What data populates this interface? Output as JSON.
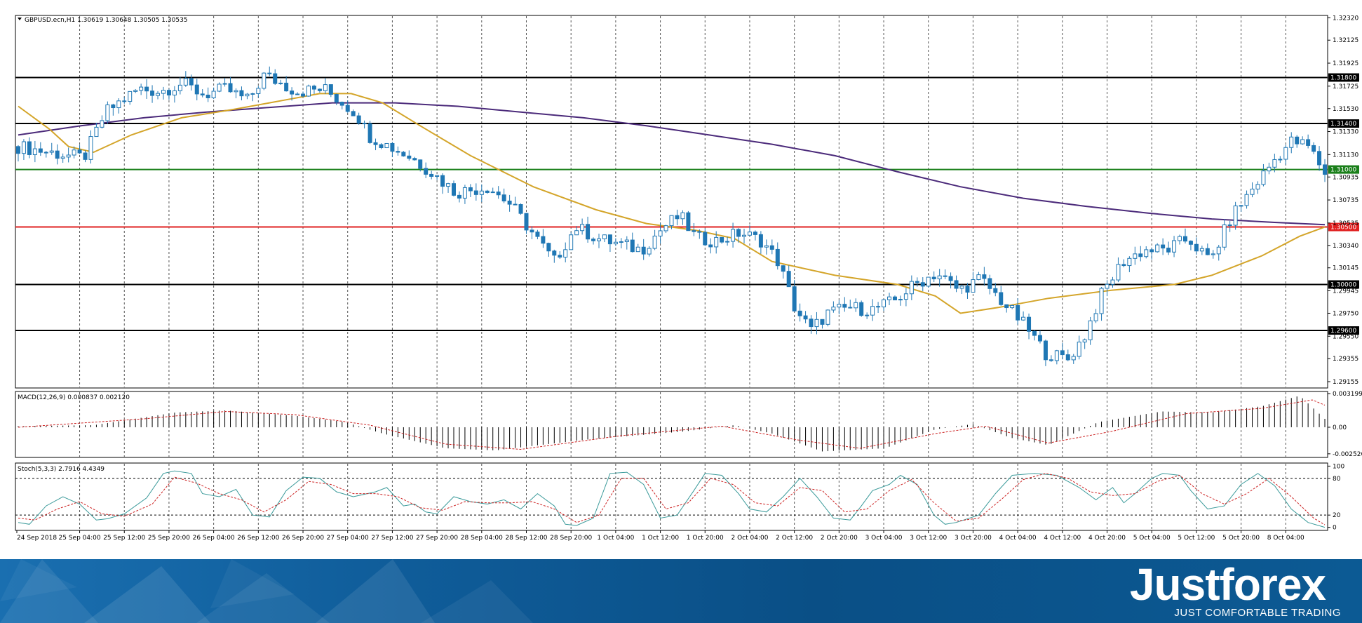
{
  "colors": {
    "bull": "#ffffff",
    "bear": "#1f77b4",
    "candle_edge": "#1f77b4",
    "ma_fast": "#d4a52a",
    "ma_slow": "#4b2a7a",
    "level_black": "#000000",
    "level_green": "#1a7f1a",
    "level_red": "#e02020",
    "macd_hist": "#000000",
    "macd_signal": "#cc2222",
    "stoch_main": "#3a9a9a",
    "stoch_signal": "#cc2222",
    "banner": "#0f5c99"
  },
  "brand": {
    "name": "Justforex",
    "tagline": "JUST COMFORTABLE TRADING"
  },
  "chart_data": [
    {
      "type": "candlestick",
      "title": "GBPUSD.ecn,H1  1.30619 1.30648 1.30505 1.30535",
      "ylim": [
        1.291,
        1.3234
      ],
      "y_ticks": [
        "1.32320",
        "1.32125",
        "1.31925",
        "1.31725",
        "1.31530",
        "1.31330",
        "1.31130",
        "1.30935",
        "1.30735",
        "1.30535",
        "1.30340",
        "1.30145",
        "1.29945",
        "1.29750",
        "1.29550",
        "1.29355",
        "1.29155"
      ],
      "x_tick_labels": [
        "24 Sep 2018",
        "25 Sep 04:00",
        "25 Sep 12:00",
        "25 Sep 20:00",
        "26 Sep 04:00",
        "26 Sep 12:00",
        "26 Sep 20:00",
        "27 Sep 04:00",
        "27 Sep 12:00",
        "27 Sep 20:00",
        "28 Sep 04:00",
        "28 Sep 12:00",
        "28 Sep 20:00",
        "1 Oct 04:00",
        "1 Oct 12:00",
        "1 Oct 20:00",
        "2 Oct 04:00",
        "2 Oct 12:00",
        "2 Oct 20:00",
        "3 Oct 04:00",
        "3 Oct 12:00",
        "3 Oct 20:00",
        "4 Oct 04:00",
        "4 Oct 12:00",
        "4 Oct 20:00",
        "5 Oct 04:00",
        "5 Oct 12:00",
        "5 Oct 20:00",
        "8 Oct 04:00"
      ],
      "horizontal_levels": [
        {
          "value": 1.318,
          "label": "1.31800",
          "color": "black"
        },
        {
          "value": 1.314,
          "label": "1.31400",
          "color": "black"
        },
        {
          "value": 1.31,
          "label": "1.31000",
          "color": "green"
        },
        {
          "value": 1.305,
          "label": "1.30500",
          "color": "red"
        },
        {
          "value": 1.3,
          "label": "1.30000",
          "color": "black"
        },
        {
          "value": 1.296,
          "label": "1.29600",
          "color": "black"
        }
      ],
      "ma_fast": [
        [
          0,
          1.3155
        ],
        [
          5,
          1.3135
        ],
        [
          8,
          1.312
        ],
        [
          12,
          1.3115
        ],
        [
          18,
          1.313
        ],
        [
          26,
          1.3145
        ],
        [
          34,
          1.3152
        ],
        [
          42,
          1.316
        ],
        [
          48,
          1.3166
        ],
        [
          53,
          1.3166
        ],
        [
          58,
          1.3158
        ],
        [
          64,
          1.3138
        ],
        [
          72,
          1.3112
        ],
        [
          82,
          1.3085
        ],
        [
          92,
          1.3065
        ],
        [
          100,
          1.3053
        ],
        [
          108,
          1.3047
        ],
        [
          114,
          1.304
        ],
        [
          120,
          1.302
        ],
        [
          130,
          1.3008
        ],
        [
          140,
          1.3
        ],
        [
          146,
          1.299
        ],
        [
          150,
          1.2975
        ],
        [
          156,
          1.298
        ],
        [
          164,
          1.2988
        ],
        [
          174,
          1.2995
        ],
        [
          184,
          1.3
        ],
        [
          190,
          1.3008
        ],
        [
          198,
          1.3025
        ],
        [
          204,
          1.3042
        ],
        [
          208,
          1.305
        ]
      ],
      "ma_slow": [
        [
          0,
          1.313
        ],
        [
          10,
          1.3138
        ],
        [
          20,
          1.3145
        ],
        [
          30,
          1.315
        ],
        [
          40,
          1.3154
        ],
        [
          50,
          1.3158
        ],
        [
          60,
          1.3158
        ],
        [
          70,
          1.3155
        ],
        [
          80,
          1.315
        ],
        [
          90,
          1.3145
        ],
        [
          100,
          1.3138
        ],
        [
          110,
          1.313
        ],
        [
          120,
          1.3122
        ],
        [
          130,
          1.3112
        ],
        [
          140,
          1.3098
        ],
        [
          150,
          1.3085
        ],
        [
          160,
          1.3075
        ],
        [
          170,
          1.3068
        ],
        [
          180,
          1.3062
        ],
        [
          190,
          1.3057
        ],
        [
          200,
          1.3054
        ],
        [
          208,
          1.3052
        ]
      ]
    },
    {
      "type": "histogram",
      "title": "MACD(12,26,9) 0.000837 0.002120",
      "ylim": [
        -0.00287,
        0.0034
      ],
      "y_ticks": [
        "0.003199",
        "0.00",
        "-0.002526"
      ],
      "hist": [
        [
          0,
          0.0001
        ],
        [
          12,
          0.0002
        ],
        [
          25,
          0.0014
        ],
        [
          33,
          0.0016
        ],
        [
          44,
          0.0011
        ],
        [
          52,
          0.0005
        ],
        [
          58,
          -0.0006
        ],
        [
          68,
          -0.002
        ],
        [
          76,
          -0.0022
        ],
        [
          90,
          -0.0012
        ],
        [
          106,
          -0.0004
        ],
        [
          114,
          0.0002
        ],
        [
          120,
          -0.0006
        ],
        [
          128,
          -0.0023
        ],
        [
          138,
          -0.002
        ],
        [
          146,
          -0.0002
        ],
        [
          152,
          0.0003
        ],
        [
          158,
          -0.001
        ],
        [
          164,
          -0.0017
        ],
        [
          172,
          0.0005
        ],
        [
          182,
          0.0015
        ],
        [
          190,
          0.0014
        ],
        [
          198,
          0.002
        ],
        [
          204,
          0.003
        ],
        [
          208,
          0.0008
        ]
      ],
      "signal": [
        [
          0,
          0.0
        ],
        [
          20,
          0.0008
        ],
        [
          33,
          0.0015
        ],
        [
          44,
          0.0012
        ],
        [
          56,
          0.0002
        ],
        [
          68,
          -0.0016
        ],
        [
          80,
          -0.0021
        ],
        [
          96,
          -0.0008
        ],
        [
          112,
          0.0001
        ],
        [
          124,
          -0.0012
        ],
        [
          134,
          -0.002
        ],
        [
          146,
          -0.0006
        ],
        [
          154,
          0.0001
        ],
        [
          164,
          -0.0015
        ],
        [
          174,
          -0.0004
        ],
        [
          186,
          0.0013
        ],
        [
          198,
          0.0018
        ],
        [
          206,
          0.0026
        ],
        [
          208,
          0.0021
        ]
      ]
    },
    {
      "type": "line",
      "title": "Stoch(5,3,3) 2.7916 4.4349",
      "ylim": [
        -5,
        105
      ],
      "y_ticks": [
        "100",
        "80",
        "20",
        "0"
      ],
      "main": [
        [
          0,
          8
        ],
        [
          2,
          5
        ],
        [
          5,
          35
        ],
        [
          8,
          50
        ],
        [
          11,
          38
        ],
        [
          14,
          12
        ],
        [
          16,
          14
        ],
        [
          19,
          22
        ],
        [
          23,
          48
        ],
        [
          26,
          88
        ],
        [
          28,
          92
        ],
        [
          31,
          88
        ],
        [
          33,
          55
        ],
        [
          36,
          50
        ],
        [
          39,
          62
        ],
        [
          42,
          20
        ],
        [
          45,
          17
        ],
        [
          48,
          60
        ],
        [
          51,
          82
        ],
        [
          54,
          80
        ],
        [
          57,
          58
        ],
        [
          60,
          50
        ],
        [
          64,
          58
        ],
        [
          66,
          65
        ],
        [
          69,
          35
        ],
        [
          71,
          38
        ],
        [
          73,
          25
        ],
        [
          75,
          22
        ],
        [
          78,
          50
        ],
        [
          81,
          42
        ],
        [
          84,
          38
        ],
        [
          87,
          45
        ],
        [
          90,
          30
        ],
        [
          93,
          55
        ],
        [
          96,
          35
        ],
        [
          98,
          5
        ],
        [
          100,
          3
        ],
        [
          103,
          15
        ],
        [
          106,
          88
        ],
        [
          109,
          90
        ],
        [
          112,
          70
        ],
        [
          115,
          15
        ],
        [
          118,
          20
        ],
        [
          121,
          60
        ],
        [
          123,
          88
        ],
        [
          126,
          85
        ],
        [
          129,
          55
        ],
        [
          131,
          30
        ],
        [
          134,
          25
        ],
        [
          137,
          50
        ],
        [
          140,
          80
        ],
        [
          143,
          50
        ],
        [
          146,
          15
        ],
        [
          149,
          12
        ],
        [
          151,
          35
        ],
        [
          153,
          60
        ],
        [
          156,
          70
        ],
        [
          158,
          85
        ],
        [
          161,
          70
        ],
        [
          164,
          20
        ],
        [
          166,
          5
        ],
        [
          168,
          8
        ],
        [
          172,
          20
        ],
        [
          175,
          55
        ],
        [
          178,
          85
        ],
        [
          182,
          88
        ],
        [
          186,
          85
        ],
        [
          190,
          65
        ],
        [
          193,
          45
        ],
        [
          196,
          65
        ],
        [
          198,
          40
        ],
        [
          200,
          55
        ],
        [
          203,
          80
        ],
        [
          205,
          88
        ],
        [
          208,
          85
        ],
        [
          210,
          60
        ],
        [
          213,
          30
        ],
        [
          216,
          35
        ],
        [
          219,
          70
        ],
        [
          222,
          88
        ],
        [
          225,
          68
        ],
        [
          228,
          30
        ],
        [
          231,
          8
        ],
        [
          234,
          0
        ]
      ],
      "signal": [
        [
          0,
          15
        ],
        [
          3,
          12
        ],
        [
          7,
          30
        ],
        [
          11,
          42
        ],
        [
          15,
          22
        ],
        [
          19,
          18
        ],
        [
          24,
          38
        ],
        [
          28,
          82
        ],
        [
          32,
          72
        ],
        [
          36,
          55
        ],
        [
          40,
          45
        ],
        [
          44,
          25
        ],
        [
          48,
          45
        ],
        [
          52,
          75
        ],
        [
          56,
          70
        ],
        [
          60,
          55
        ],
        [
          64,
          55
        ],
        [
          68,
          50
        ],
        [
          72,
          32
        ],
        [
          76,
          28
        ],
        [
          80,
          42
        ],
        [
          84,
          40
        ],
        [
          88,
          40
        ],
        [
          92,
          42
        ],
        [
          96,
          30
        ],
        [
          100,
          8
        ],
        [
          104,
          20
        ],
        [
          108,
          80
        ],
        [
          112,
          80
        ],
        [
          116,
          30
        ],
        [
          120,
          40
        ],
        [
          124,
          80
        ],
        [
          128,
          70
        ],
        [
          132,
          40
        ],
        [
          136,
          35
        ],
        [
          140,
          65
        ],
        [
          144,
          60
        ],
        [
          148,
          25
        ],
        [
          152,
          30
        ],
        [
          156,
          60
        ],
        [
          160,
          78
        ],
        [
          164,
          40
        ],
        [
          168,
          10
        ],
        [
          172,
          15
        ],
        [
          176,
          45
        ],
        [
          180,
          78
        ],
        [
          184,
          88
        ],
        [
          188,
          80
        ],
        [
          192,
          58
        ],
        [
          196,
          52
        ],
        [
          200,
          55
        ],
        [
          204,
          75
        ],
        [
          208,
          85
        ],
        [
          212,
          55
        ],
        [
          216,
          38
        ],
        [
          220,
          55
        ],
        [
          224,
          80
        ],
        [
          228,
          50
        ],
        [
          232,
          15
        ],
        [
          234,
          4
        ]
      ]
    }
  ]
}
